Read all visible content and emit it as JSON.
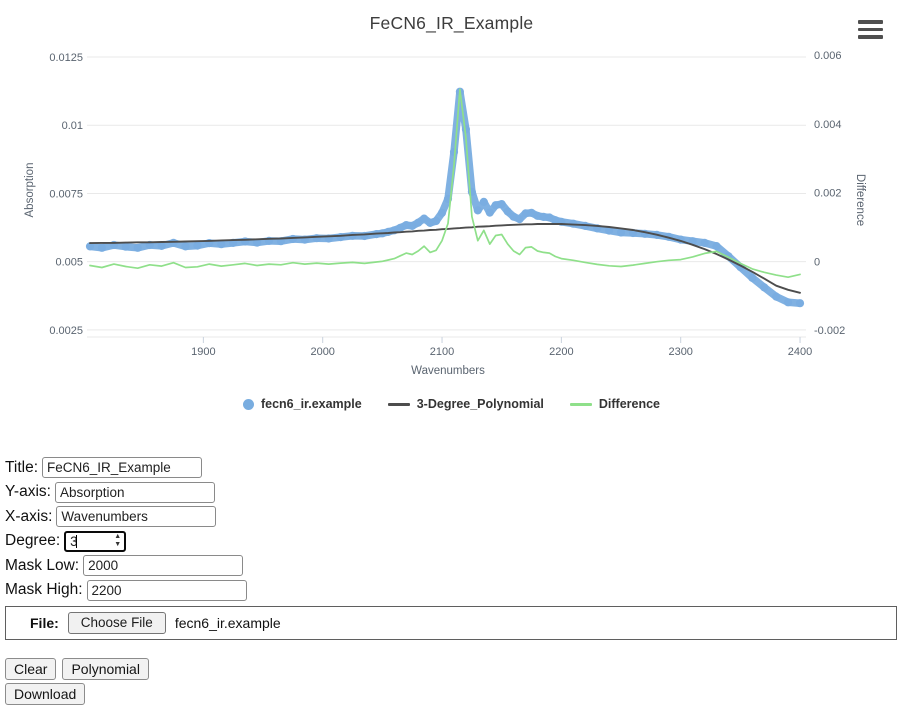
{
  "chart": {
    "title": "FeCN6_IR_Example",
    "x_axis": {
      "label": "Wavenumbers",
      "ticks": [
        1900,
        2000,
        2100,
        2200,
        2300,
        2400
      ],
      "range": [
        1805,
        2405
      ]
    },
    "y_left": {
      "label": "Absorption",
      "ticks": [
        0.0025,
        0.005,
        0.0075,
        0.01,
        0.0125
      ],
      "range": [
        0.00224,
        0.01294
      ]
    },
    "y_right": {
      "label": "Difference",
      "ticks": [
        -0.002,
        0,
        0.002,
        0.004,
        0.006
      ],
      "range": [
        -0.0022,
        0.00629
      ]
    },
    "grid_color": "#e9e9e9",
    "tick_color": "#5a6470",
    "legend": [
      {
        "label": "fecn6_ir.example",
        "marker": "dot",
        "color": "#79ade0"
      },
      {
        "label": "3-Degree_Polynomial",
        "marker": "line",
        "color": "#4d4d4d"
      },
      {
        "label": "Difference",
        "marker": "line",
        "color": "#8fe08a"
      }
    ]
  },
  "chart_data": {
    "type": "line",
    "title": "FeCN6_IR_Example",
    "xlabel": "Wavenumbers",
    "ylabel_left": "Absorption",
    "ylabel_right": "Difference",
    "x_range": [
      1805,
      2405
    ],
    "y_left_range": [
      0.0025,
      0.0125
    ],
    "y_right_range": [
      -0.002,
      0.006
    ],
    "grid": true,
    "legend_position": "bottom-center",
    "x": [
      1805,
      1815,
      1825,
      1835,
      1845,
      1855,
      1865,
      1875,
      1885,
      1895,
      1905,
      1915,
      1925,
      1935,
      1945,
      1955,
      1965,
      1975,
      1985,
      1995,
      2005,
      2015,
      2025,
      2035,
      2045,
      2050,
      2055,
      2060,
      2065,
      2070,
      2075,
      2080,
      2085,
      2090,
      2095,
      2100,
      2105,
      2110,
      2115,
      2120,
      2125,
      2130,
      2135,
      2140,
      2145,
      2150,
      2155,
      2160,
      2165,
      2170,
      2175,
      2180,
      2185,
      2190,
      2195,
      2200,
      2210,
      2220,
      2230,
      2240,
      2250,
      2260,
      2270,
      2280,
      2290,
      2300,
      2310,
      2320,
      2330,
      2340,
      2350,
      2360,
      2370,
      2380,
      2390,
      2400
    ],
    "series": [
      {
        "name": "fecn6_ir.example",
        "axis": "left",
        "style": "thick-dots",
        "color": "#79ade0",
        "values": [
          0.00556,
          0.00551,
          0.00561,
          0.00555,
          0.00551,
          0.00561,
          0.00558,
          0.00569,
          0.00556,
          0.00559,
          0.00568,
          0.00564,
          0.00569,
          0.00574,
          0.0057,
          0.00576,
          0.00575,
          0.00583,
          0.00581,
          0.00586,
          0.00585,
          0.0059,
          0.00595,
          0.00594,
          0.00601,
          0.00604,
          0.00609,
          0.00615,
          0.00624,
          0.00634,
          0.00631,
          0.00643,
          0.00658,
          0.00642,
          0.00649,
          0.00679,
          0.0073,
          0.00902,
          0.01123,
          0.00985,
          0.00756,
          0.00688,
          0.00719,
          0.0068,
          0.00707,
          0.00711,
          0.00684,
          0.00665,
          0.00656,
          0.00677,
          0.00679,
          0.00668,
          0.00664,
          0.00662,
          0.00652,
          0.00646,
          0.00639,
          0.00631,
          0.00622,
          0.00614,
          0.00607,
          0.00605,
          0.00602,
          0.00598,
          0.00591,
          0.00581,
          0.00575,
          0.00569,
          0.00557,
          0.0052,
          0.0048,
          0.00441,
          0.00406,
          0.00372,
          0.00351,
          0.00348
        ]
      },
      {
        "name": "3-Degree_Polynomial",
        "axis": "left",
        "style": "line",
        "color": "#4d4d4d",
        "values": [
          0.00568,
          0.00569,
          0.00569,
          0.0057,
          0.00571,
          0.00571,
          0.00572,
          0.00573,
          0.00574,
          0.00575,
          0.00576,
          0.00578,
          0.00579,
          0.0058,
          0.00582,
          0.00584,
          0.00585,
          0.00587,
          0.00589,
          0.00591,
          0.00593,
          0.00595,
          0.00598,
          0.006,
          0.00603,
          0.00604,
          0.00605,
          0.00607,
          0.00608,
          0.0061,
          0.00611,
          0.00613,
          0.00614,
          0.00616,
          0.00617,
          0.00619,
          0.0062,
          0.00622,
          0.00623,
          0.00625,
          0.00626,
          0.00628,
          0.00629,
          0.0063,
          0.00632,
          0.00633,
          0.00634,
          0.00635,
          0.00636,
          0.00637,
          0.00637,
          0.00638,
          0.00638,
          0.00638,
          0.00638,
          0.00638,
          0.00636,
          0.00634,
          0.00631,
          0.00627,
          0.00622,
          0.00616,
          0.00608,
          0.00599,
          0.00588,
          0.00576,
          0.00562,
          0.00546,
          0.00528,
          0.00508,
          0.00486,
          0.00463,
          0.00438,
          0.00412,
          0.00397,
          0.00386
        ]
      },
      {
        "name": "Difference",
        "axis": "right",
        "style": "line",
        "color": "#8fe08a",
        "values": [
          -0.00012,
          -0.00018,
          -8e-05,
          -0.00015,
          -0.0002,
          -0.0001,
          -0.00014,
          -4e-05,
          -0.00018,
          -0.00016,
          -8e-05,
          -0.00014,
          -0.0001,
          -6e-05,
          -0.00012,
          -8e-05,
          -0.0001,
          -4e-05,
          -8e-05,
          -5e-05,
          -8e-05,
          -5e-05,
          -3e-05,
          -6e-05,
          -2e-05,
          0.0,
          4e-05,
          8e-05,
          0.00016,
          0.00024,
          0.0002,
          0.0003,
          0.00044,
          0.00026,
          0.00032,
          0.0006,
          0.0011,
          0.0028,
          0.005,
          0.0036,
          0.0013,
          0.0006,
          0.0009,
          0.0005,
          0.00075,
          0.00078,
          0.0005,
          0.0003,
          0.0002,
          0.0004,
          0.00042,
          0.0003,
          0.00026,
          0.00024,
          0.00014,
          8e-05,
          3e-05,
          -3e-05,
          -9e-05,
          -0.00013,
          -0.00015,
          -0.00011,
          -6e-05,
          -1e-05,
          3e-05,
          5e-05,
          0.00013,
          0.00023,
          0.00029,
          0.00012,
          -6e-05,
          -0.00022,
          -0.00032,
          -0.0004,
          -0.00046,
          -0.00038
        ]
      }
    ]
  },
  "form": {
    "title": {
      "label": "Title:",
      "value": "FeCN6_IR_Example"
    },
    "yaxis": {
      "label": "Y-axis:",
      "value": "Absorption"
    },
    "xaxis": {
      "label": "X-axis:",
      "value": "Wavenumbers"
    },
    "degree": {
      "label": "Degree:",
      "value": "3"
    },
    "mask_low": {
      "label": "Mask Low:",
      "value": "2000"
    },
    "mask_high": {
      "label": "Mask High:",
      "value": "2200"
    },
    "file": {
      "label": "File:",
      "button_label": "Choose File",
      "filename": "fecn6_ir.example"
    },
    "buttons": {
      "clear": "Clear",
      "polynomial": "Polynomial",
      "download": "Download"
    }
  }
}
